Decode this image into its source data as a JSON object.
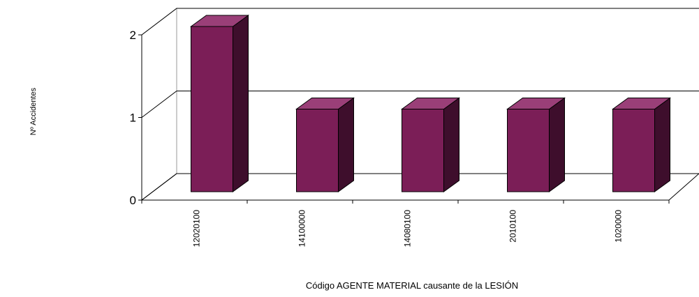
{
  "chart_data": {
    "type": "bar",
    "categories": [
      "12020100",
      "14100000",
      "14080100",
      "2010100",
      "1020000"
    ],
    "values": [
      2,
      1,
      1,
      1,
      1
    ],
    "xlabel": "Código AGENTE MATERIAL causante de la LESIÓN",
    "ylabel": "Nº Accidentes",
    "ylim": [
      0,
      2
    ],
    "yticks": [
      0,
      1,
      2
    ],
    "grid": true,
    "three_d": true,
    "colors": {
      "bar_front": "#7b1e57",
      "bar_top": "#9a3f78",
      "bar_side": "#3e0e2c",
      "grid": "#000000",
      "wall": "#ffffff"
    }
  }
}
